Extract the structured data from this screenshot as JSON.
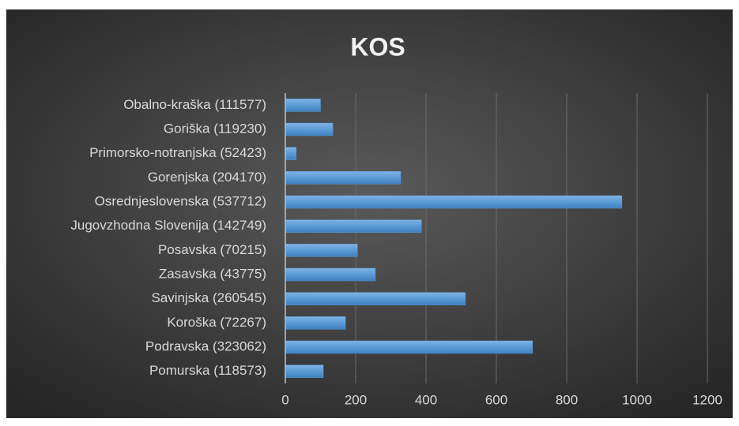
{
  "chart_data": {
    "type": "bar",
    "orientation": "horizontal",
    "title": "KOS",
    "categories": [
      "Obalno-kraška (111577)",
      "Goriška (119230)",
      "Primorsko-notranjska (52423)",
      "Gorenjska (204170)",
      "Osrednjeslovenska (537712)",
      "Jugovzhodna Slovenija (142749)",
      "Posavska (70215)",
      "Zasavska (43775)",
      "Savinjska (260545)",
      "Koroška (72267)",
      "Podravska (323062)",
      "Pomurska (118573)"
    ],
    "values": [
      100,
      135,
      31,
      328,
      957,
      387,
      205,
      256,
      512,
      171,
      703,
      108
    ],
    "color": "#5b9bd5",
    "xlim": [
      0,
      1200
    ],
    "xticks": [
      0,
      200,
      400,
      600,
      800,
      1000,
      1200
    ],
    "grid": true
  }
}
